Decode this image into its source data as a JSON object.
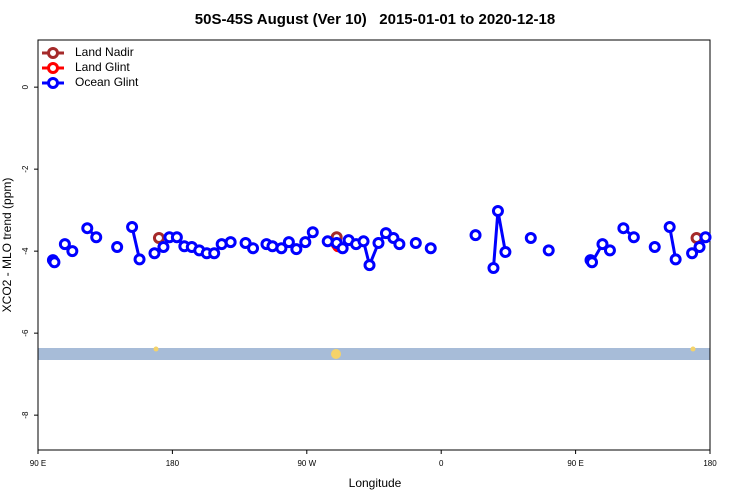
{
  "chart_data": {
    "type": "line",
    "title": "50S-45S August (Ver 10)   2015-01-01 to 2020-12-18",
    "x_label": "Longitude",
    "y_label": "XCO2 - MLO trend (ppm)",
    "xlim": [
      90,
      540
    ],
    "xticks": [
      {
        "value": 90,
        "label": "90 E"
      },
      180,
      {
        "value": 270,
        "label": "90 W"
      },
      {
        "value": 360,
        "label": "0"
      },
      {
        "value": 450,
        "label": "90 E"
      },
      {
        "value": 540,
        "label": "180"
      }
    ],
    "ylim": [
      -8.85,
      1.15
    ],
    "yticks": [
      0,
      -2,
      -4,
      -6,
      -8
    ],
    "legend": "upper left",
    "series": [
      {
        "name": "Land Nadir",
        "color": "#a52a2a",
        "x": [
          171,
          null,
          290,
          null,
          531
        ],
        "values": [
          -3.68,
          null,
          -3.66,
          null,
          -3.68
        ]
      },
      {
        "name": "Land Glint",
        "color": "#ff0000",
        "x": [
          290,
          291
        ],
        "values": [
          -3.83,
          -3.88
        ]
      },
      {
        "name": "Ocean Glint",
        "color": "#0000ff",
        "x": [
          100,
          101,
          null,
          108,
          113,
          null,
          123,
          129,
          null,
          143,
          null,
          153,
          158,
          null,
          168,
          174,
          178,
          183,
          188,
          193,
          198,
          203,
          208,
          213,
          219,
          null,
          229,
          234,
          null,
          243,
          247,
          253,
          258,
          263,
          269,
          274,
          null,
          284,
          290,
          294,
          298,
          303,
          308,
          312,
          318,
          323,
          328,
          332,
          null,
          343,
          null,
          353,
          null,
          383,
          null,
          395,
          398,
          403,
          null,
          420,
          null,
          432,
          null,
          460,
          461,
          468,
          473,
          null,
          482,
          489,
          null,
          503,
          null,
          513,
          517,
          null,
          528,
          533,
          537
        ],
        "values": [
          -4.22,
          -4.27,
          null,
          -3.83,
          -4.0,
          null,
          -3.44,
          -3.66,
          null,
          -3.9,
          null,
          -3.41,
          -4.2,
          null,
          -4.05,
          -3.9,
          -3.66,
          -3.66,
          -3.88,
          -3.9,
          -3.98,
          -4.05,
          -4.05,
          -3.83,
          -3.78,
          null,
          -3.8,
          -3.93,
          null,
          -3.83,
          -3.88,
          -3.93,
          -3.78,
          -3.95,
          -3.78,
          -3.54,
          null,
          -3.76,
          -3.8,
          -3.93,
          -3.73,
          -3.83,
          -3.76,
          -4.34,
          -3.8,
          -3.56,
          -3.68,
          -3.83,
          null,
          -3.8,
          null,
          -3.93,
          null,
          -3.61,
          null,
          -4.41,
          -3.02,
          -4.02,
          null,
          -3.68,
          null,
          -3.98,
          null,
          -4.22,
          -4.27,
          -3.83,
          -3.98,
          null,
          -3.44,
          -3.66,
          null,
          -3.9,
          null,
          -3.41,
          -4.2,
          null,
          -4.05,
          -3.9,
          -3.66
        ]
      }
    ]
  }
}
